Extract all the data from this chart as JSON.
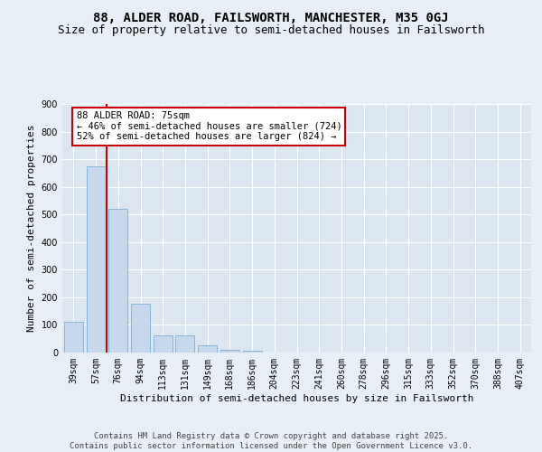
{
  "title1": "88, ALDER ROAD, FAILSWORTH, MANCHESTER, M35 0GJ",
  "title2": "Size of property relative to semi-detached houses in Failsworth",
  "xlabel": "Distribution of semi-detached houses by size in Failsworth",
  "ylabel": "Number of semi-detached properties",
  "categories": [
    "39sqm",
    "57sqm",
    "76sqm",
    "94sqm",
    "113sqm",
    "131sqm",
    "149sqm",
    "168sqm",
    "186sqm",
    "204sqm",
    "223sqm",
    "241sqm",
    "260sqm",
    "278sqm",
    "296sqm",
    "315sqm",
    "333sqm",
    "352sqm",
    "370sqm",
    "388sqm",
    "407sqm"
  ],
  "values": [
    110,
    675,
    520,
    178,
    62,
    62,
    25,
    10,
    5,
    0,
    0,
    0,
    0,
    0,
    0,
    0,
    0,
    0,
    0,
    0,
    0
  ],
  "bar_color": "#c5d8ee",
  "bar_edge_color": "#7aaed4",
  "vline_color": "#cc0000",
  "annotation_text": "88 ALDER ROAD: 75sqm\n← 46% of semi-detached houses are smaller (724)\n52% of semi-detached houses are larger (824) →",
  "annotation_box_color": "#ffffff",
  "annotation_box_edge": "#cc0000",
  "ylim": [
    0,
    900
  ],
  "yticks": [
    0,
    100,
    200,
    300,
    400,
    500,
    600,
    700,
    800,
    900
  ],
  "background_color": "#e8eef5",
  "plot_bg_color": "#dce6f0",
  "footer": "Contains HM Land Registry data © Crown copyright and database right 2025.\nContains public sector information licensed under the Open Government Licence v3.0.",
  "title1_fontsize": 10,
  "title2_fontsize": 9,
  "xlabel_fontsize": 8,
  "ylabel_fontsize": 8,
  "tick_fontsize": 7,
  "annotation_fontsize": 7.5,
  "footer_fontsize": 6.5
}
